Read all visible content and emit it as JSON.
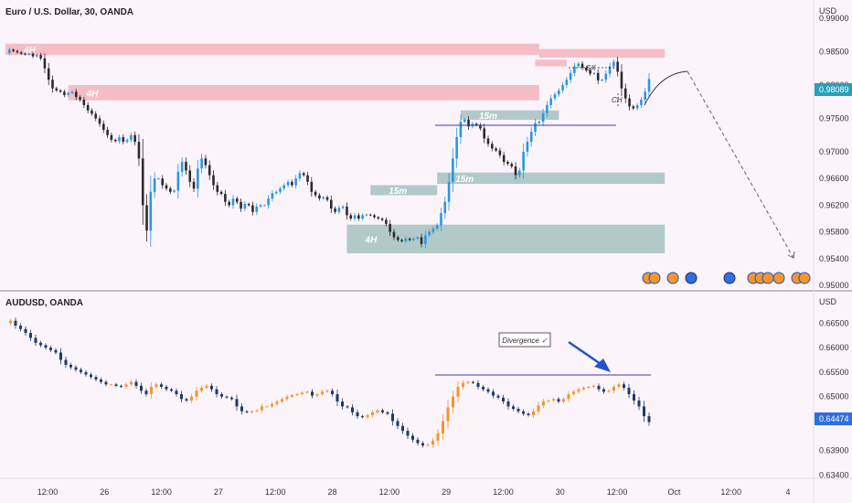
{
  "chart_data": [
    {
      "type": "candlestick",
      "title": "Euro / U.S. Dollar, 30, OANDA",
      "currency_label": "USD",
      "y_ticks": [
        "0.99000",
        "0.98500",
        "0.98000",
        "0.97500",
        "0.97000",
        "0.96600",
        "0.96200",
        "0.95800",
        "0.95400",
        "0.95000"
      ],
      "ylim": [
        0.95,
        0.99
      ],
      "last_price": "0.98089",
      "zones": [
        {
          "label": "4H",
          "kind": "supply",
          "y_top": 0.9862,
          "y_bottom": 0.9845,
          "x_from": 0,
          "x_to": 136
        },
        {
          "label": "4H",
          "kind": "supply",
          "y_top": 0.98,
          "y_bottom": 0.9777,
          "x_from": 16,
          "x_to": 136
        },
        {
          "label": "",
          "kind": "supply",
          "y_top": 0.9854,
          "y_bottom": 0.9841,
          "x_from": 136,
          "x_to": 168
        },
        {
          "label": "",
          "kind": "supply",
          "y_top": 0.9838,
          "y_bottom": 0.9828,
          "x_from": 135,
          "x_to": 143
        },
        {
          "label": "15m",
          "kind": "demand",
          "y_top": 0.9762,
          "y_bottom": 0.9748,
          "x_from": 116,
          "x_to": 141
        },
        {
          "label": "15m",
          "kind": "demand",
          "y_top": 0.9669,
          "y_bottom": 0.9652,
          "x_from": 110,
          "x_to": 168
        },
        {
          "label": "15m",
          "kind": "demand",
          "y_top": 0.965,
          "y_bottom": 0.9635,
          "x_from": 93,
          "x_to": 110
        },
        {
          "label": "4H",
          "kind": "demand",
          "y_top": 0.9591,
          "y_bottom": 0.9548,
          "x_from": 87,
          "x_to": 168
        }
      ],
      "annotations": [
        "SX",
        "CH"
      ]
    },
    {
      "type": "candlestick",
      "title": "AUDUSD, OANDA",
      "currency_label": "USD",
      "y_ticks": [
        "0.66500",
        "0.66000",
        "0.65500",
        "0.65000",
        "0.64500",
        "0.63900",
        "0.63400"
      ],
      "ylim": [
        0.6335,
        0.6675
      ],
      "last_price": "0.64474",
      "annotations": [
        "Divergence ✓"
      ]
    }
  ],
  "x_axis": {
    "ticks": [
      "12:00",
      "26",
      "12:00",
      "27",
      "12:00",
      "28",
      "12:00",
      "29",
      "12:00",
      "30",
      "12:00",
      "Oct",
      "12:00",
      "4"
    ]
  },
  "colors": {
    "up": "#2a96e0",
    "down": "#2a2a2a",
    "aud_up": "#f3962e",
    "aud_down": "#1f3a6e",
    "supply": "#f4b8c0",
    "demand": "#a8c4c4",
    "price_tag": "#2aa0b8",
    "aud_tag": "#2f6fe0",
    "arrow": "#1f55c8"
  },
  "series_eur": [
    0.9848,
    0.9853,
    0.9851,
    0.9849,
    0.9847,
    0.9846,
    0.9847,
    0.9843,
    0.9845,
    0.984,
    0.9825,
    0.9808,
    0.9795,
    0.9792,
    0.979,
    0.9785,
    0.9788,
    0.979,
    0.9782,
    0.9778,
    0.977,
    0.9762,
    0.9757,
    0.975,
    0.9742,
    0.9733,
    0.9725,
    0.9718,
    0.9716,
    0.9722,
    0.9715,
    0.9718,
    0.9725,
    0.9715,
    0.969,
    0.962,
    0.9582,
    0.964,
    0.966,
    0.966,
    0.965,
    0.9645,
    0.964,
    0.9642,
    0.967,
    0.9685,
    0.9672,
    0.9655,
    0.9645,
    0.9675,
    0.969,
    0.968,
    0.9665,
    0.965,
    0.964,
    0.9637,
    0.9625,
    0.962,
    0.963,
    0.9625,
    0.9615,
    0.9622,
    0.962,
    0.961,
    0.9618,
    0.962,
    0.962,
    0.963,
    0.9638,
    0.964,
    0.9645,
    0.965,
    0.9655,
    0.965,
    0.966,
    0.9668,
    0.9665,
    0.9655,
    0.964,
    0.9635,
    0.963,
    0.9632,
    0.9628,
    0.9615,
    0.961,
    0.9616,
    0.9618,
    0.9605,
    0.96,
    0.9605,
    0.96,
    0.9605,
    0.9606,
    0.9605,
    0.9602,
    0.96,
    0.9598,
    0.9592,
    0.958,
    0.9572,
    0.9568,
    0.9566,
    0.957,
    0.9568,
    0.957,
    0.9572,
    0.9562,
    0.9575,
    0.958,
    0.9585,
    0.959,
    0.9608,
    0.9625,
    0.9655,
    0.969,
    0.9722,
    0.9745,
    0.9748,
    0.9738,
    0.9742,
    0.974,
    0.9735,
    0.972,
    0.9712,
    0.9705,
    0.9702,
    0.9695,
    0.9685,
    0.9682,
    0.9678,
    0.9665,
    0.9672,
    0.97,
    0.9715,
    0.973,
    0.9743,
    0.9745,
    0.9758,
    0.977,
    0.978,
    0.9786,
    0.9792,
    0.98,
    0.9808,
    0.9818,
    0.9828,
    0.9832,
    0.9826,
    0.9822,
    0.9817,
    0.9818,
    0.9807,
    0.9808,
    0.9817,
    0.9828,
    0.9835,
    0.982,
    0.9795,
    0.978,
    0.9768,
    0.9765,
    0.977,
    0.9778,
    0.979,
    0.9809
  ],
  "series_aud": [
    0.665,
    0.6655,
    0.6645,
    0.6638,
    0.663,
    0.662,
    0.661,
    0.6605,
    0.66,
    0.6595,
    0.659,
    0.6575,
    0.6565,
    0.656,
    0.6555,
    0.655,
    0.6545,
    0.654,
    0.6535,
    0.653,
    0.6525,
    0.6525,
    0.6522,
    0.652,
    0.6525,
    0.653,
    0.6522,
    0.6512,
    0.6505,
    0.652,
    0.6525,
    0.652,
    0.6515,
    0.6512,
    0.6505,
    0.6495,
    0.6492,
    0.65,
    0.6512,
    0.6518,
    0.6522,
    0.6515,
    0.6505,
    0.65,
    0.6498,
    0.6495,
    0.648,
    0.647,
    0.6468,
    0.647,
    0.6472,
    0.648,
    0.648,
    0.6485,
    0.649,
    0.6495,
    0.65,
    0.6503,
    0.6505,
    0.6508,
    0.651,
    0.6502,
    0.6505,
    0.651,
    0.6512,
    0.6505,
    0.649,
    0.648,
    0.6478,
    0.6468,
    0.646,
    0.6458,
    0.6462,
    0.6468,
    0.6472,
    0.6468,
    0.6465,
    0.645,
    0.644,
    0.643,
    0.642,
    0.6412,
    0.6405,
    0.64,
    0.6402,
    0.641,
    0.6425,
    0.645,
    0.6478,
    0.65,
    0.652,
    0.6528,
    0.653,
    0.6528,
    0.652,
    0.6515,
    0.651,
    0.6502,
    0.6498,
    0.649,
    0.648,
    0.6475,
    0.647,
    0.6465,
    0.6462,
    0.647,
    0.6482,
    0.649,
    0.6492,
    0.6495,
    0.649,
    0.6495,
    0.6505,
    0.651,
    0.6515,
    0.6518,
    0.652,
    0.6522,
    0.6515,
    0.651,
    0.6512,
    0.652,
    0.6525,
    0.6518,
    0.6505,
    0.6492,
    0.648,
    0.646,
    0.6448
  ]
}
